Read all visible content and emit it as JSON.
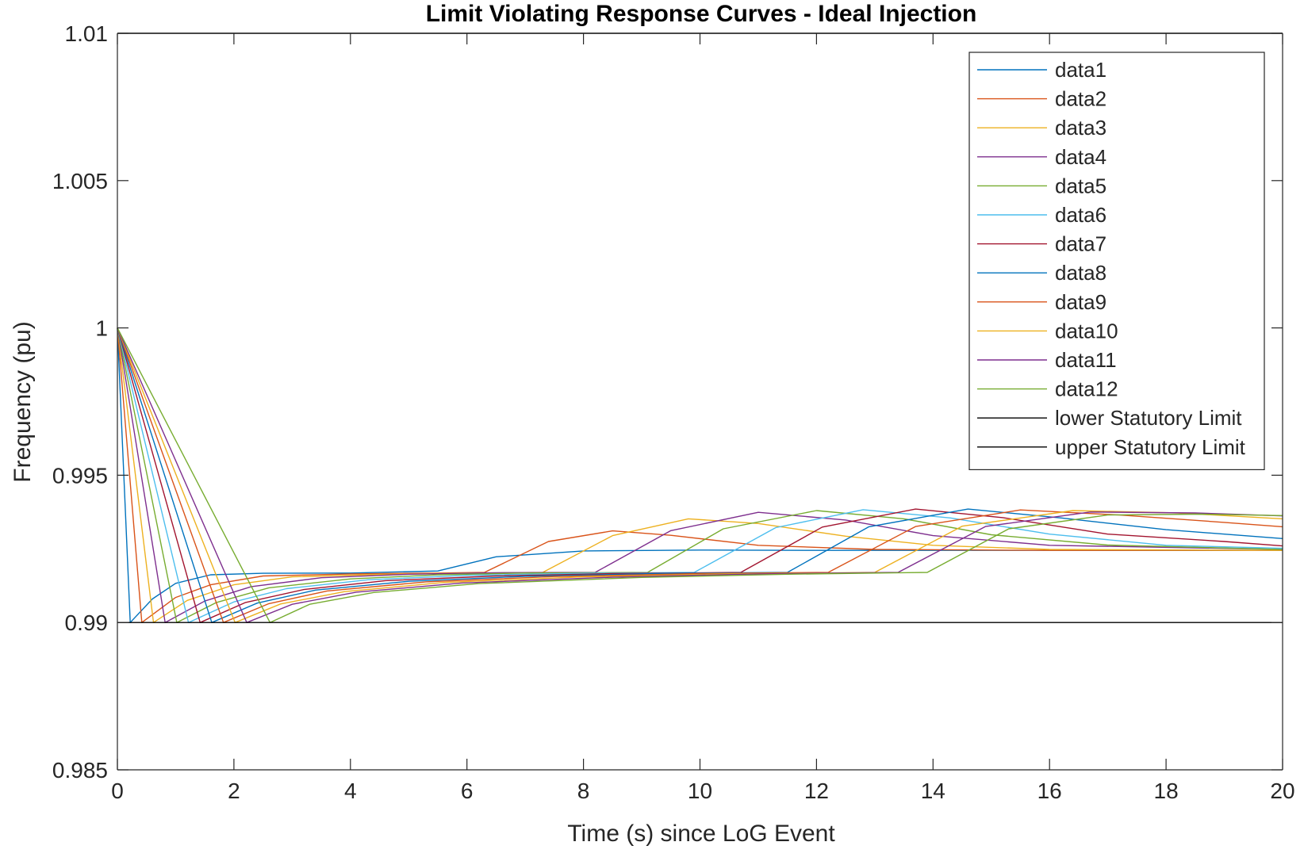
{
  "chart_data": {
    "type": "line",
    "title": "Limit Violating Response Curves - Ideal Injection",
    "xlabel": "Time (s) since LoG Event",
    "ylabel": "Frequency (pu)",
    "xlim": [
      0,
      20
    ],
    "ylim": [
      0.985,
      1.01
    ],
    "xticks": [
      "0",
      "2",
      "4",
      "6",
      "8",
      "10",
      "12",
      "14",
      "16",
      "18",
      "20"
    ],
    "yticks": [
      "0.985",
      "0.99",
      "0.995",
      "1",
      "1.005",
      "1.01"
    ],
    "grid": false,
    "legend_position": "top-right",
    "series": [
      {
        "name": "data1",
        "color": "#0072BD",
        "x": [
          0,
          0.22,
          0.6,
          1.0,
          1.6,
          2.5,
          4,
          5.5,
          6.5,
          8,
          10,
          12,
          14,
          20
        ],
        "y": [
          1.0,
          0.99,
          0.9908,
          0.99133,
          0.99162,
          0.99167,
          0.99168,
          0.99175,
          0.99223,
          0.99243,
          0.99246,
          0.99245,
          0.99245,
          0.99245
        ]
      },
      {
        "name": "data2",
        "color": "#D95319",
        "x": [
          0,
          0.42,
          1.0,
          1.6,
          2.5,
          4,
          5.5,
          6.3,
          7.4,
          8.5,
          9.5,
          11,
          13,
          16,
          20
        ],
        "y": [
          1.0,
          0.99,
          0.99085,
          0.99128,
          0.99158,
          0.99165,
          0.99168,
          0.9917,
          0.99275,
          0.99311,
          0.99296,
          0.99262,
          0.99248,
          0.99245,
          0.99245
        ]
      },
      {
        "name": "data3",
        "color": "#EDB120",
        "x": [
          0,
          0.62,
          1.2,
          2.0,
          3.0,
          4.5,
          6,
          7.3,
          8.5,
          9.8,
          11,
          12.5,
          14,
          16,
          20
        ],
        "y": [
          1.0,
          0.99,
          0.99075,
          0.99128,
          0.99155,
          0.99163,
          0.99168,
          0.9917,
          0.99295,
          0.99352,
          0.99336,
          0.99293,
          0.99262,
          0.99248,
          0.99245
        ]
      },
      {
        "name": "data4",
        "color": "#7E2F8E",
        "x": [
          0,
          0.82,
          1.5,
          2.3,
          3.5,
          5,
          6.5,
          8.2,
          9.5,
          11,
          12.5,
          14,
          16,
          20
        ],
        "y": [
          1.0,
          0.99,
          0.99073,
          0.99122,
          0.99152,
          0.99164,
          0.99169,
          0.9917,
          0.99312,
          0.99374,
          0.99348,
          0.99295,
          0.99262,
          0.99248
        ]
      },
      {
        "name": "data5",
        "color": "#77AC30",
        "x": [
          0,
          1.02,
          1.7,
          2.6,
          4,
          5.5,
          7,
          9.1,
          10.4,
          12,
          13.5,
          15,
          17,
          20
        ],
        "y": [
          1.0,
          0.99,
          0.99068,
          0.99118,
          0.99148,
          0.99162,
          0.99168,
          0.9917,
          0.99318,
          0.9938,
          0.99352,
          0.99298,
          0.99263,
          0.99248
        ]
      },
      {
        "name": "data6",
        "color": "#4DBEEE",
        "x": [
          0,
          1.22,
          2.0,
          2.9,
          4.3,
          6,
          8,
          9.9,
          11.3,
          12.8,
          14.3,
          16,
          18,
          20
        ],
        "y": [
          1.0,
          0.99,
          0.9907,
          0.99115,
          0.99145,
          0.9916,
          0.99167,
          0.9917,
          0.99322,
          0.99383,
          0.99355,
          0.993,
          0.99262,
          0.99252
        ]
      },
      {
        "name": "data7",
        "color": "#A2142F",
        "x": [
          0,
          1.42,
          2.2,
          3.2,
          4.6,
          6.5,
          8.5,
          10.7,
          12.1,
          13.7,
          15.2,
          17,
          19,
          20
        ],
        "y": [
          1.0,
          0.99,
          0.99068,
          0.99112,
          0.99142,
          0.99158,
          0.99166,
          0.9917,
          0.99324,
          0.99385,
          0.99356,
          0.993,
          0.99275,
          0.9926
        ]
      },
      {
        "name": "data8",
        "color": "#0072BD",
        "x": [
          0,
          1.62,
          2.4,
          3.4,
          5,
          7,
          9.5,
          11.5,
          12.9,
          14.6,
          16.2,
          18,
          20
        ],
        "y": [
          1.0,
          0.99,
          0.99066,
          0.9911,
          0.9914,
          0.99157,
          0.99167,
          0.9917,
          0.99325,
          0.99385,
          0.99355,
          0.99315,
          0.99285
        ]
      },
      {
        "name": "data9",
        "color": "#D95319",
        "x": [
          0,
          1.82,
          2.6,
          3.6,
          5.3,
          7.5,
          10,
          12.2,
          13.7,
          15.5,
          17.2,
          19,
          20
        ],
        "y": [
          1.0,
          0.99,
          0.99064,
          0.99107,
          0.99138,
          0.99156,
          0.99166,
          0.9917,
          0.99326,
          0.99382,
          0.99365,
          0.9934,
          0.99325
        ]
      },
      {
        "name": "data10",
        "color": "#EDB120",
        "x": [
          0,
          2.02,
          2.8,
          3.9,
          5.6,
          8,
          10.5,
          13.0,
          14.5,
          16.4,
          18.2,
          20
        ],
        "y": [
          1.0,
          0.99,
          0.99063,
          0.99105,
          0.99136,
          0.99155,
          0.99165,
          0.9917,
          0.99327,
          0.9938,
          0.99372,
          0.99352
        ]
      },
      {
        "name": "data11",
        "color": "#7E2F8E",
        "x": [
          0,
          2.22,
          3.0,
          4.1,
          5.9,
          8.5,
          11,
          13.4,
          14.9,
          16.7,
          18.5,
          20
        ],
        "y": [
          1.0,
          0.99,
          0.99062,
          0.99103,
          0.99134,
          0.99154,
          0.99165,
          0.9917,
          0.99326,
          0.99375,
          0.99372,
          0.99362
        ]
      },
      {
        "name": "data12",
        "color": "#77AC30",
        "x": [
          0,
          2.62,
          3.3,
          4.4,
          6.2,
          9,
          11.5,
          13.9,
          15.3,
          17.0,
          18.6,
          20
        ],
        "y": [
          1.0,
          0.99,
          0.99062,
          0.99102,
          0.99132,
          0.99153,
          0.99164,
          0.9917,
          0.99318,
          0.99365,
          0.99368,
          0.99363
        ]
      },
      {
        "name": "lower Statutory Limit",
        "color": "#000000",
        "x": [
          0,
          20
        ],
        "y": [
          0.99,
          0.99
        ]
      },
      {
        "name": "upper Statutory Limit",
        "color": "#000000",
        "x": [
          0,
          20
        ],
        "y": [
          1.01,
          1.01
        ]
      }
    ]
  }
}
